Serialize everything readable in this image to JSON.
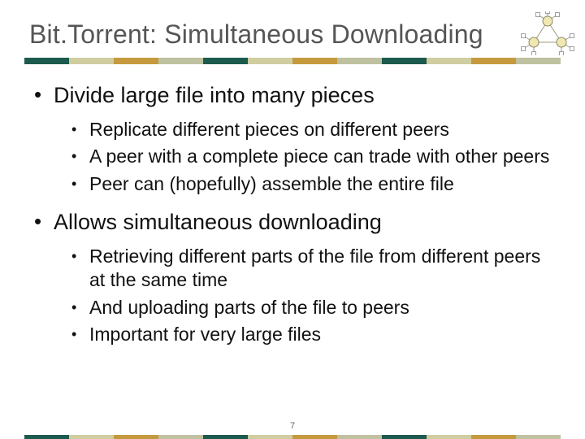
{
  "title": "Bit.Torrent: Simultaneous Downloading",
  "page_number": "7",
  "stripe_colors": [
    "#1c5a4e",
    "#d0cda0",
    "#c59a3f",
    "#bfc1a0",
    "#1c5a4e",
    "#d0cda0",
    "#c59a3f",
    "#bfc1a0",
    "#1c5a4e",
    "#d0cda0",
    "#c59a3f",
    "#bfc1a0"
  ],
  "bullets": [
    {
      "text": "Divide large file into many pieces",
      "sub": [
        "Replicate different pieces on different peers",
        "A peer with a complete piece can trade with other peers",
        "Peer can (hopefully) assemble the entire file"
      ]
    },
    {
      "text": "Allows simultaneous downloading",
      "sub": [
        "Retrieving different parts of the file from different peers at the same time",
        "And uploading parts of the file to peers",
        "Important for very large files"
      ]
    }
  ],
  "diagram": {
    "node_fill": "#f0e8b0",
    "node_stroke": "#8a8a6a",
    "link_stroke": "#9a9a80",
    "leaf_fill": "#ffffff",
    "leaf_stroke": "#888"
  }
}
